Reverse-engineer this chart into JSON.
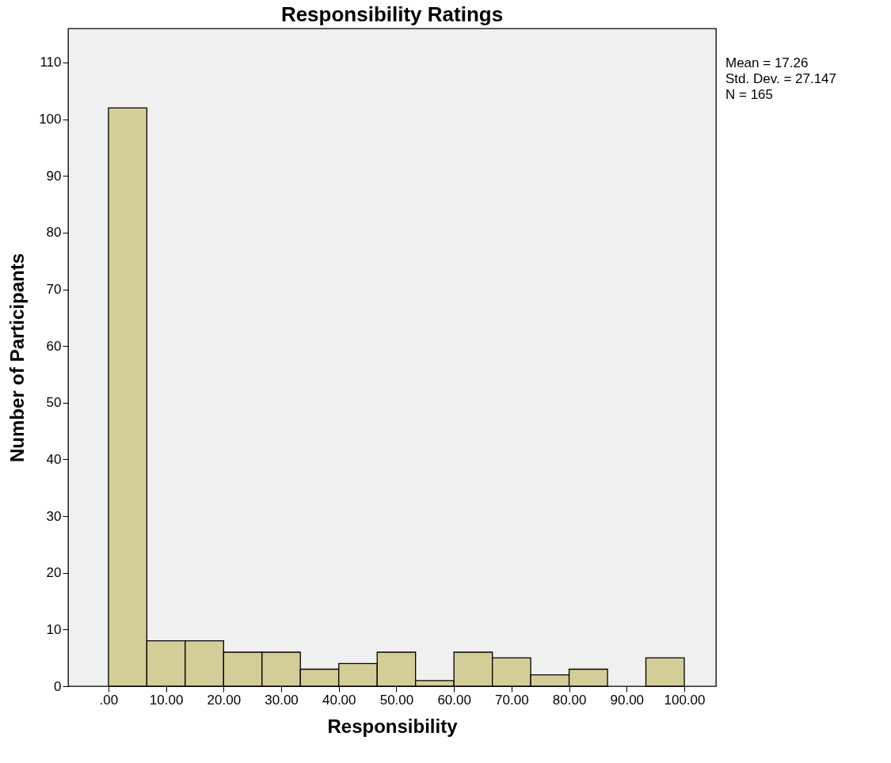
{
  "chart_data": {
    "type": "histogram",
    "title": "Responsibility Ratings",
    "xlabel": "Responsibility",
    "ylabel": "Number of Participants",
    "bins": [
      0,
      6.67,
      13.33,
      20,
      26.67,
      33.33,
      40,
      46.67,
      53.33,
      60,
      66.67,
      73.33,
      80,
      86.67,
      93.33,
      100
    ],
    "values": [
      102,
      8,
      8,
      6,
      6,
      3,
      4,
      6,
      1,
      6,
      5,
      2,
      3,
      0,
      5
    ],
    "color": "#d3ce97",
    "xlim": [
      -7,
      105.5
    ],
    "xticks": [
      {
        "value": 0,
        "label": ".00"
      },
      {
        "value": 10,
        "label": "10.00"
      },
      {
        "value": 20,
        "label": "20.00"
      },
      {
        "value": 30,
        "label": "30.00"
      },
      {
        "value": 40,
        "label": "40.00"
      },
      {
        "value": 50,
        "label": "50.00"
      },
      {
        "value": 60,
        "label": "60.00"
      },
      {
        "value": 70,
        "label": "70.00"
      },
      {
        "value": 80,
        "label": "80.00"
      },
      {
        "value": 90,
        "label": "90.00"
      },
      {
        "value": 100,
        "label": "100.00"
      }
    ],
    "ylim": [
      0,
      116
    ],
    "yticks": [
      0,
      10,
      20,
      30,
      40,
      50,
      60,
      70,
      80,
      90,
      100,
      110
    ],
    "grid": false,
    "annotations": [
      "Mean = 17.26",
      "Std. Dev. = 27.147",
      "N = 165"
    ]
  }
}
